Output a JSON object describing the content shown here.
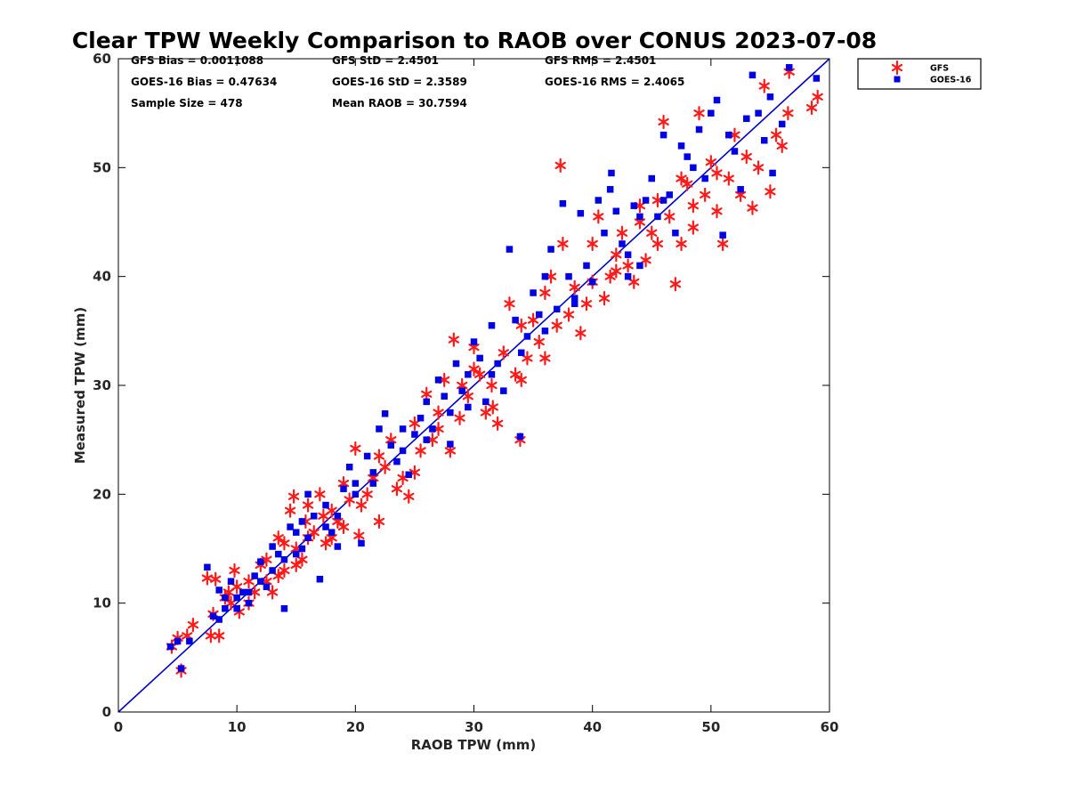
{
  "chart_data": {
    "type": "scatter",
    "title": "Clear TPW Weekly Comparison to RAOB over CONUS 2023-07-08",
    "xlabel": "RAOB TPW (mm)",
    "ylabel": "Measured TPW (mm)",
    "xlim": [
      0,
      60
    ],
    "ylim": [
      0,
      60
    ],
    "xticks": [
      0,
      10,
      20,
      30,
      40,
      50,
      60
    ],
    "yticks": [
      0,
      10,
      20,
      30,
      40,
      50,
      60
    ],
    "grid": false,
    "legend_position": "outside-top-right",
    "reference_line": {
      "name": "1:1 line",
      "x": [
        0,
        60
      ],
      "y": [
        0,
        60
      ],
      "color": "#0000cc"
    },
    "stats": [
      {
        "text": "GFS Bias = 0.0011088"
      },
      {
        "text": "GFS StD = 2.4501"
      },
      {
        "text": "GFS RMS = 2.4501"
      },
      {
        "text": "GOES-16 Bias = 0.47634"
      },
      {
        "text": "GOES-16 StD = 2.3589"
      },
      {
        "text": "GOES-16 RMS = 2.4065"
      },
      {
        "text": "Sample Size = 478"
      },
      {
        "text": "Mean RAOB = 30.7594"
      }
    ],
    "series": [
      {
        "name": "GFS",
        "marker": "asterisk",
        "color": "#ff1a1a",
        "points": [
          [
            4.5,
            6.0
          ],
          [
            5.0,
            6.8
          ],
          [
            5.3,
            3.8
          ],
          [
            5.8,
            7.0
          ],
          [
            6.3,
            8.0
          ],
          [
            7.5,
            12.3
          ],
          [
            7.8,
            7.0
          ],
          [
            8.2,
            12.2
          ],
          [
            8.5,
            7.0
          ],
          [
            8.0,
            9.0
          ],
          [
            9.0,
            10.5
          ],
          [
            9.3,
            11.0
          ],
          [
            9.8,
            13.0
          ],
          [
            10.2,
            9.2
          ],
          [
            11.0,
            10.0
          ],
          [
            11.5,
            11.0
          ],
          [
            12.0,
            13.5
          ],
          [
            12.5,
            12.0
          ],
          [
            13.0,
            11.0
          ],
          [
            13.5,
            12.5
          ],
          [
            13.5,
            16.0
          ],
          [
            14.0,
            13.0
          ],
          [
            14.5,
            18.5
          ],
          [
            14.8,
            19.8
          ],
          [
            15.0,
            15.0
          ],
          [
            15.5,
            14.0
          ],
          [
            15.8,
            17.5
          ],
          [
            16.0,
            19.0
          ],
          [
            16.5,
            16.5
          ],
          [
            17.0,
            20.0
          ],
          [
            17.3,
            18.0
          ],
          [
            17.5,
            15.5
          ],
          [
            18.0,
            16.0
          ],
          [
            18.5,
            17.5
          ],
          [
            19.0,
            21.0
          ],
          [
            19.0,
            17.0
          ],
          [
            20.0,
            24.2
          ],
          [
            20.3,
            16.2
          ],
          [
            20.5,
            19.0
          ],
          [
            21.0,
            20.0
          ],
          [
            21.5,
            21.5
          ],
          [
            22.0,
            17.5
          ],
          [
            22.5,
            22.5
          ],
          [
            23.0,
            25.0
          ],
          [
            23.5,
            20.5
          ],
          [
            24.0,
            21.5
          ],
          [
            24.5,
            19.8
          ],
          [
            25.0,
            22.0
          ],
          [
            25.5,
            24.0
          ],
          [
            26.0,
            29.2
          ],
          [
            26.5,
            25.0
          ],
          [
            27.0,
            27.5
          ],
          [
            27.5,
            30.5
          ],
          [
            28.0,
            24.0
          ],
          [
            28.3,
            34.2
          ],
          [
            28.8,
            27.0
          ],
          [
            29.0,
            30.0
          ],
          [
            29.5,
            29.0
          ],
          [
            30.0,
            33.5
          ],
          [
            30.5,
            31.0
          ],
          [
            31.0,
            27.5
          ],
          [
            31.5,
            30.0
          ],
          [
            31.6,
            28.0
          ],
          [
            32.0,
            26.5
          ],
          [
            32.5,
            33.0
          ],
          [
            33.0,
            37.5
          ],
          [
            33.5,
            31.0
          ],
          [
            33.9,
            25.0
          ],
          [
            34.0,
            30.5
          ],
          [
            34.5,
            32.5
          ],
          [
            35.0,
            36.0
          ],
          [
            35.5,
            34.0
          ],
          [
            36.0,
            32.5
          ],
          [
            36.5,
            40.0
          ],
          [
            37.0,
            35.5
          ],
          [
            37.3,
            50.2
          ],
          [
            37.5,
            43.0
          ],
          [
            38.0,
            36.5
          ],
          [
            38.5,
            39.0
          ],
          [
            39.0,
            34.8
          ],
          [
            39.5,
            37.5
          ],
          [
            40.0,
            39.5
          ],
          [
            40.5,
            45.5
          ],
          [
            41.0,
            38.0
          ],
          [
            41.5,
            40.0
          ],
          [
            42.0,
            42.0
          ],
          [
            42.5,
            44.0
          ],
          [
            43.0,
            41.0
          ],
          [
            43.5,
            39.5
          ],
          [
            44.0,
            45.0
          ],
          [
            44.5,
            41.5
          ],
          [
            45.0,
            44.0
          ],
          [
            45.5,
            43.0
          ],
          [
            46.0,
            54.2
          ],
          [
            46.5,
            45.5
          ],
          [
            47.0,
            39.3
          ],
          [
            47.5,
            43.0
          ],
          [
            48.0,
            48.5
          ],
          [
            48.5,
            46.5
          ],
          [
            49.0,
            55.0
          ],
          [
            49.5,
            47.5
          ],
          [
            50.0,
            50.5
          ],
          [
            50.5,
            46.0
          ],
          [
            51.0,
            43.0
          ],
          [
            51.5,
            49.0
          ],
          [
            52.0,
            53.0
          ],
          [
            52.5,
            47.5
          ],
          [
            53.0,
            51.0
          ],
          [
            53.5,
            46.3
          ],
          [
            54.0,
            50.0
          ],
          [
            54.5,
            57.5
          ],
          [
            55.0,
            47.8
          ],
          [
            55.5,
            53.0
          ],
          [
            56.0,
            52.0
          ],
          [
            56.5,
            55.0
          ],
          [
            56.6,
            58.8
          ],
          [
            58.5,
            55.5
          ],
          [
            59.0,
            56.5
          ],
          [
            44.0,
            46.5
          ],
          [
            45.5,
            47.0
          ],
          [
            47.5,
            49.0
          ],
          [
            48.5,
            44.5
          ],
          [
            50.5,
            49.5
          ],
          [
            42.0,
            40.5
          ],
          [
            40.0,
            43.0
          ],
          [
            36.0,
            38.5
          ],
          [
            34.0,
            35.5
          ],
          [
            30.0,
            31.5
          ],
          [
            27.0,
            26.0
          ],
          [
            25.0,
            26.5
          ],
          [
            22.0,
            23.5
          ],
          [
            19.5,
            19.5
          ],
          [
            18.0,
            18.5
          ],
          [
            16.0,
            16.0
          ],
          [
            14.0,
            15.5
          ],
          [
            12.5,
            14.0
          ],
          [
            11.0,
            12.0
          ],
          [
            10.0,
            11.5
          ],
          [
            9.5,
            10.0
          ],
          [
            15.0,
            13.5
          ]
        ]
      },
      {
        "name": "GOES-16",
        "marker": "square",
        "color": "#0000e6",
        "points": [
          [
            4.4,
            6.0
          ],
          [
            5.0,
            6.5
          ],
          [
            5.3,
            4.0
          ],
          [
            6.0,
            6.5
          ],
          [
            7.5,
            13.3
          ],
          [
            8.0,
            8.8
          ],
          [
            8.5,
            11.2
          ],
          [
            9.0,
            9.5
          ],
          [
            9.5,
            12.0
          ],
          [
            10.0,
            10.5
          ],
          [
            10.5,
            11.0
          ],
          [
            11.0,
            10.0
          ],
          [
            11.5,
            12.5
          ],
          [
            12.0,
            13.8
          ],
          [
            12.5,
            11.5
          ],
          [
            13.0,
            15.2
          ],
          [
            13.5,
            14.5
          ],
          [
            14.0,
            9.5
          ],
          [
            14.5,
            17.0
          ],
          [
            15.0,
            16.5
          ],
          [
            15.5,
            15.0
          ],
          [
            16.0,
            20.0
          ],
          [
            16.5,
            18.0
          ],
          [
            17.0,
            12.2
          ],
          [
            17.5,
            19.0
          ],
          [
            18.0,
            16.5
          ],
          [
            18.5,
            15.2
          ],
          [
            19.0,
            20.5
          ],
          [
            19.5,
            22.5
          ],
          [
            20.0,
            21.0
          ],
          [
            20.5,
            15.5
          ],
          [
            21.0,
            23.5
          ],
          [
            21.5,
            22.0
          ],
          [
            22.0,
            26.0
          ],
          [
            22.5,
            27.4
          ],
          [
            23.0,
            24.5
          ],
          [
            23.5,
            23.0
          ],
          [
            24.0,
            26.0
          ],
          [
            24.5,
            21.8
          ],
          [
            25.0,
            25.5
          ],
          [
            25.5,
            27.0
          ],
          [
            26.0,
            28.5
          ],
          [
            26.5,
            26.0
          ],
          [
            27.0,
            30.5
          ],
          [
            27.5,
            29.0
          ],
          [
            28.0,
            27.5
          ],
          [
            28.5,
            32.0
          ],
          [
            29.0,
            29.5
          ],
          [
            29.5,
            31.0
          ],
          [
            30.0,
            34.0
          ],
          [
            30.5,
            32.5
          ],
          [
            31.0,
            28.5
          ],
          [
            31.5,
            35.5
          ],
          [
            32.0,
            32.0
          ],
          [
            32.5,
            29.5
          ],
          [
            33.0,
            42.5
          ],
          [
            33.5,
            36.0
          ],
          [
            33.9,
            25.3
          ],
          [
            34.5,
            34.5
          ],
          [
            35.0,
            38.5
          ],
          [
            35.5,
            36.5
          ],
          [
            36.0,
            40.0
          ],
          [
            36.5,
            42.5
          ],
          [
            37.0,
            37.0
          ],
          [
            37.5,
            46.7
          ],
          [
            38.0,
            40.0
          ],
          [
            38.5,
            38.0
          ],
          [
            39.0,
            45.8
          ],
          [
            39.5,
            41.0
          ],
          [
            40.0,
            39.5
          ],
          [
            40.5,
            47.0
          ],
          [
            41.0,
            44.0
          ],
          [
            41.5,
            48.0
          ],
          [
            42.0,
            46.0
          ],
          [
            42.5,
            43.0
          ],
          [
            43.0,
            42.0
          ],
          [
            43.5,
            46.5
          ],
          [
            44.0,
            41.0
          ],
          [
            44.5,
            47.0
          ],
          [
            45.0,
            49.0
          ],
          [
            45.5,
            45.5
          ],
          [
            46.0,
            53.0
          ],
          [
            46.5,
            47.5
          ],
          [
            47.0,
            44.0
          ],
          [
            47.5,
            52.0
          ],
          [
            48.0,
            51.0
          ],
          [
            48.5,
            50.0
          ],
          [
            49.0,
            53.5
          ],
          [
            49.5,
            49.0
          ],
          [
            50.0,
            55.0
          ],
          [
            50.5,
            56.2
          ],
          [
            51.0,
            43.8
          ],
          [
            51.5,
            53.0
          ],
          [
            52.0,
            51.5
          ],
          [
            52.5,
            48.0
          ],
          [
            53.0,
            54.5
          ],
          [
            53.5,
            58.5
          ],
          [
            54.0,
            55.0
          ],
          [
            54.5,
            52.5
          ],
          [
            55.0,
            56.5
          ],
          [
            55.2,
            49.5
          ],
          [
            56.0,
            54.0
          ],
          [
            56.6,
            59.2
          ],
          [
            58.9,
            58.2
          ],
          [
            41.6,
            49.5
          ],
          [
            44.0,
            45.5
          ],
          [
            46.0,
            47.0
          ],
          [
            43.0,
            40.0
          ],
          [
            38.5,
            37.5
          ],
          [
            36.0,
            35.0
          ],
          [
            34.0,
            33.0
          ],
          [
            31.5,
            31.0
          ],
          [
            29.5,
            28.0
          ],
          [
            28.0,
            24.6
          ],
          [
            26.0,
            25.0
          ],
          [
            24.0,
            24.0
          ],
          [
            21.5,
            21.0
          ],
          [
            20.0,
            20.0
          ],
          [
            18.5,
            18.0
          ],
          [
            17.5,
            17.0
          ],
          [
            16.0,
            16.0
          ],
          [
            15.0,
            14.5
          ],
          [
            14.0,
            14.0
          ],
          [
            13.0,
            13.0
          ],
          [
            12.0,
            12.0
          ],
          [
            11.0,
            11.0
          ],
          [
            10.0,
            9.5
          ],
          [
            9.0,
            10.5
          ],
          [
            8.5,
            8.5
          ],
          [
            15.5,
            17.5
          ]
        ]
      }
    ]
  }
}
